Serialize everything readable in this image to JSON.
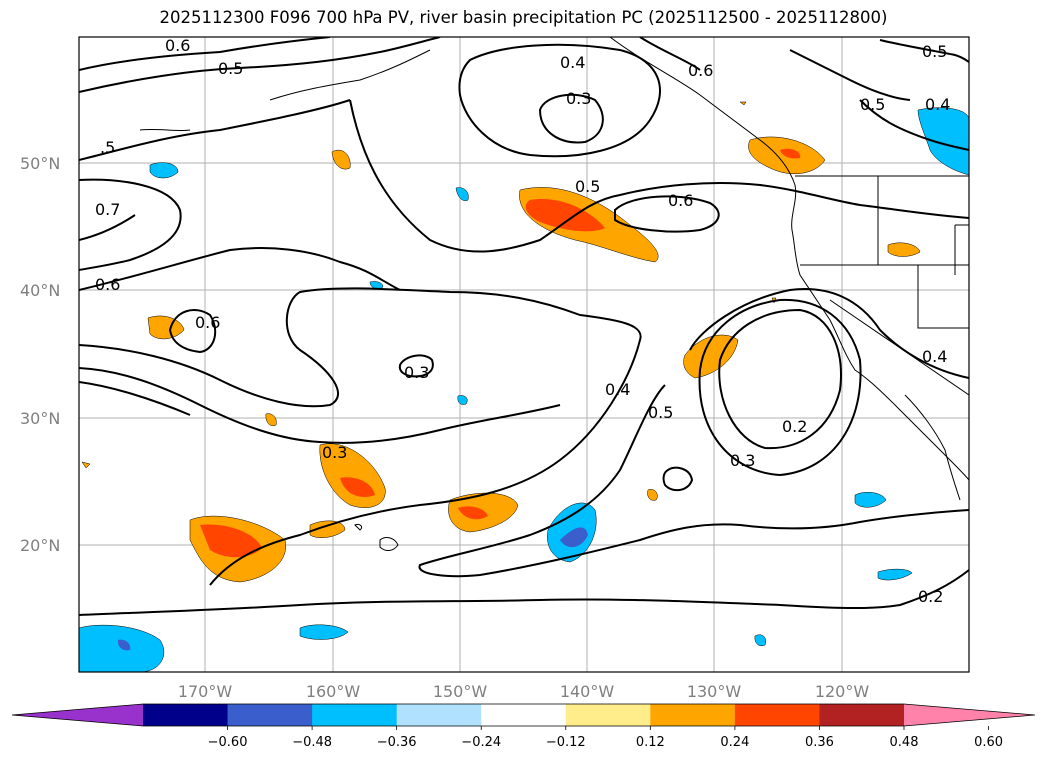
{
  "title": "2025112300 F096 700 hPa PV, river basin precipitation PC (2025112500 - 2025112800)",
  "lat_labels": [
    "50°N",
    "40°N",
    "30°N",
    "20°N"
  ],
  "lon_labels": [
    "170°W",
    "160°W",
    "150°W",
    "140°W",
    "130°W",
    "120°W"
  ],
  "contour_labels": [
    "0.6",
    "0.5",
    "0.4",
    "0.3",
    "0.5",
    "0.6",
    "0.6",
    "0.5",
    "0.4",
    "0.5",
    "0.7",
    "0.6",
    "0.6",
    "0.3",
    "0.4",
    "0.5",
    "0.2",
    "0.3",
    "0.3",
    "0.4",
    "0.2"
  ],
  "colorbar": {
    "ticks": [
      "−0.60",
      "−0.48",
      "−0.36",
      "−0.24",
      "−0.12",
      "0.12",
      "0.24",
      "0.36",
      "0.48",
      "0.60"
    ],
    "colors": [
      "#9932cc",
      "#00008b",
      "#3a5fcd",
      "#00bfff",
      "#b0e2ff",
      "#ffffff",
      "#ffec8b",
      "#ffa500",
      "#ff4500",
      "#b22222",
      "#ff82ab"
    ]
  }
}
